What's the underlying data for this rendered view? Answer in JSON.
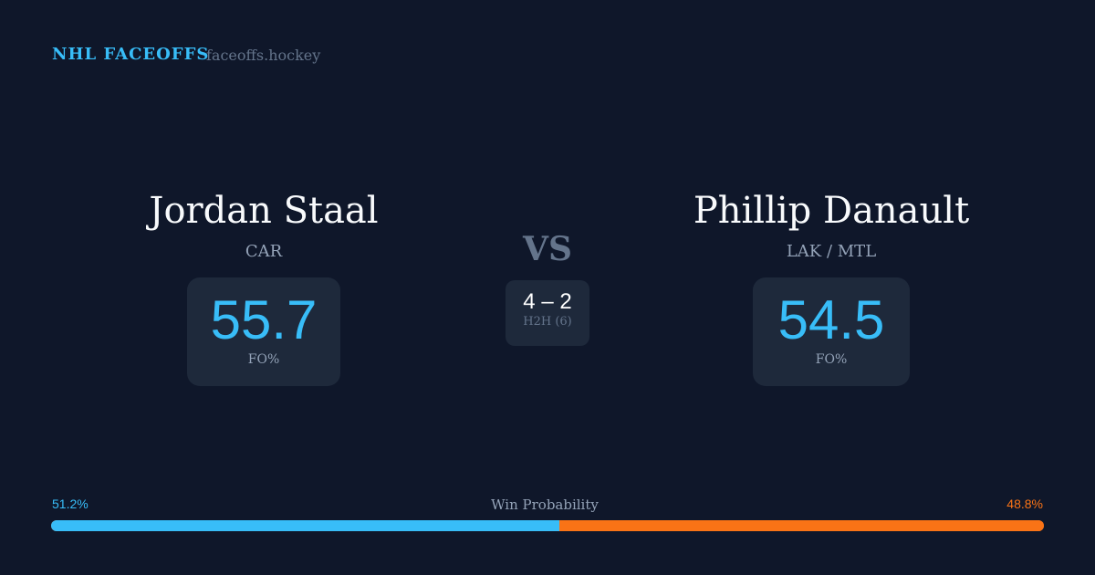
{
  "header": {
    "brand": "NHL FACEOFFS",
    "site": "faceoffs.hockey"
  },
  "players": [
    {
      "name": "Jordan Staal",
      "team": "CAR",
      "fo_pct": "55.7",
      "fo_label": "FO%"
    },
    {
      "name": "Phillip Danault",
      "team": "LAK / MTL",
      "fo_pct": "54.5",
      "fo_label": "FO%"
    }
  ],
  "vs": "VS",
  "h2h": {
    "score": "4 – 2",
    "label": "H2H (6)"
  },
  "win_probability": {
    "label": "Win Probability",
    "left": "51.2%",
    "right": "48.8%",
    "left_value": 51.2,
    "right_value": 48.8,
    "colors": {
      "left": "#38bdf8",
      "right": "#f97316"
    }
  }
}
